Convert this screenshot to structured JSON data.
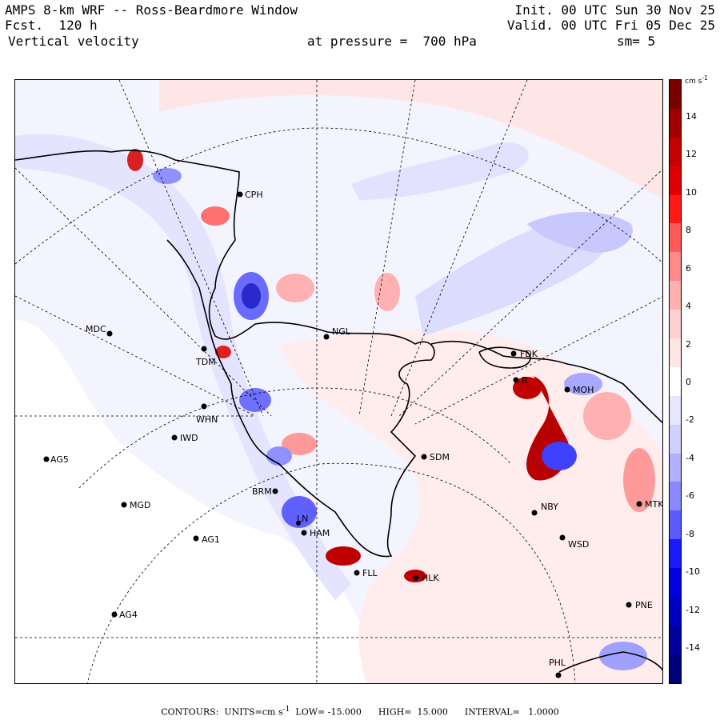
{
  "header": {
    "title": "AMPS 8-km WRF -- Ross-Beardmore Window",
    "forecast": "Fcst.  120 h",
    "field": "Vertical velocity",
    "init": "Init. 00 UTC Sun 30 Nov 25",
    "valid": "Valid. 00 UTC Fri 05 Dec 25",
    "pressure": "at pressure =  700 hPa",
    "smoothing": "sm= 5"
  },
  "colorbar": {
    "units": "cm s",
    "units_exp": "-1",
    "ticks": [
      "14",
      "12",
      "10",
      "8",
      "6",
      "4",
      "2",
      "0",
      "-2",
      "-4",
      "-6",
      "-8",
      "-10",
      "-12",
      "-14"
    ],
    "colors": [
      "#7a0000",
      "#a00000",
      "#c40000",
      "#e00000",
      "#ff1a1a",
      "#ff5a5a",
      "#ff8a8a",
      "#ffb0b0",
      "#ffd0d0",
      "#ffe6e6",
      "#ffffff",
      "#e6e6ff",
      "#d0d0ff",
      "#b0b0ff",
      "#8a8aff",
      "#5a5aff",
      "#1a1aff",
      "#0000e0",
      "#0000c0",
      "#00009c",
      "#000078"
    ]
  },
  "stations": [
    {
      "code": "CPH"
    },
    {
      "code": "MDC"
    },
    {
      "code": "TDM"
    },
    {
      "code": "NGL"
    },
    {
      "code": "FDK"
    },
    {
      "code": "MOH"
    },
    {
      "code": "WHN"
    },
    {
      "code": "IWD"
    },
    {
      "code": "AG5"
    },
    {
      "code": "SDM"
    },
    {
      "code": "BRM"
    },
    {
      "code": "MGD"
    },
    {
      "code": "NBY"
    },
    {
      "code": "MTK"
    },
    {
      "code": "AG1"
    },
    {
      "code": "WSD"
    },
    {
      "code": "FLL"
    },
    {
      "code": "HLK"
    },
    {
      "code": "AG4"
    },
    {
      "code": "PNE"
    },
    {
      "code": "PHL"
    },
    {
      "code": "HAM"
    },
    {
      "code": "LN"
    },
    {
      "code": "R"
    }
  ],
  "footer": {
    "contours": "CONTOURS:  UNITS=cm s",
    "exp": "-1",
    "rest": "  LOW= -15.000      HIGH=  15.000      INTERVAL=   1.0000"
  }
}
